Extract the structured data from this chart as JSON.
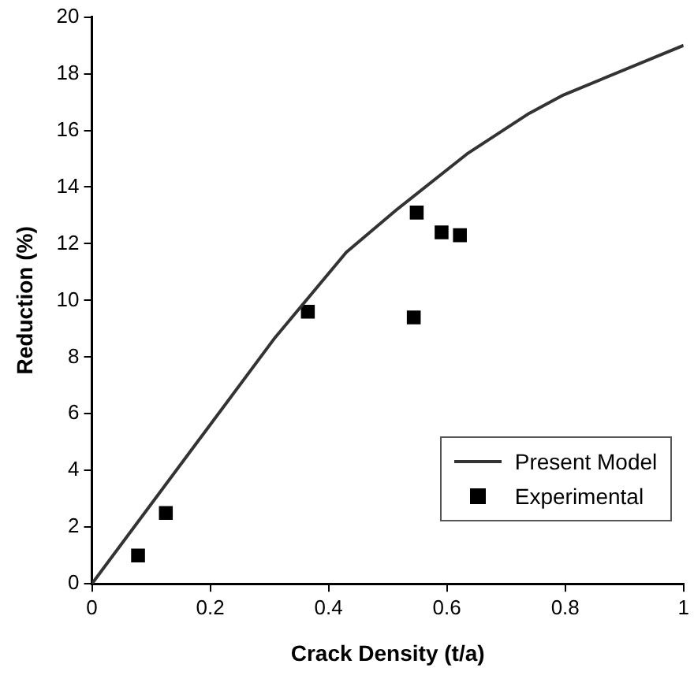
{
  "chart_data": {
    "type": "line",
    "xlabel": "Crack Density (t/a)",
    "ylabel": "Reduction (%)",
    "xlim": [
      0,
      1
    ],
    "xticks": [
      0,
      0.2,
      0.4,
      0.6,
      0.8,
      1
    ],
    "ylim": [
      0,
      20
    ],
    "yticks": [
      0,
      2,
      4,
      6,
      8,
      10,
      12,
      14,
      16,
      18,
      20
    ],
    "grid": false,
    "legend": "bottom right",
    "series": [
      {
        "name": "Present Model",
        "color": "#333333",
        "marker": "none",
        "line_style": "solid",
        "x": [
          0,
          0.31,
          0.43,
          0.515,
          0.636,
          0.739,
          0.797,
          1.0
        ],
        "values": [
          0,
          8.7,
          11.7,
          13.2,
          15.2,
          16.6,
          17.25,
          19.0
        ]
      },
      {
        "name": "Experimental",
        "type": "scatter",
        "color": "#000000",
        "marker": "square",
        "x": [
          0.078,
          0.125,
          0.365,
          0.544,
          0.549,
          0.591,
          0.622
        ],
        "values": [
          1.0,
          2.5,
          9.6,
          9.4,
          13.1,
          12.4,
          12.3
        ]
      }
    ]
  }
}
